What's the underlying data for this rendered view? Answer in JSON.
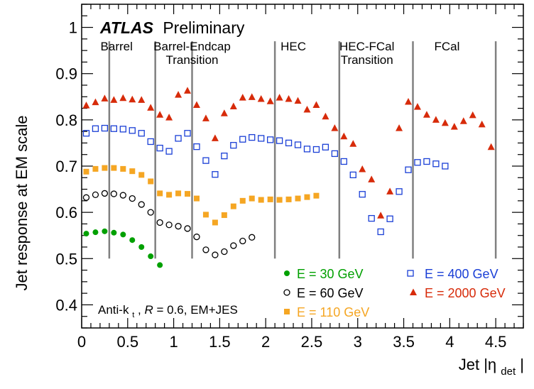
{
  "chart_data": {
    "type": "scatter",
    "title_bold": "ATLAS",
    "title_rest": "Preliminary",
    "xlabel": "Jet |η",
    "xlabel_sub": "det",
    "xlabel_end": "|",
    "ylabel": "Jet response at EM scale",
    "xlim": [
      0,
      4.8
    ],
    "ylim": [
      0.35,
      1.05
    ],
    "grid": false,
    "legend_placement": "bottom-right",
    "xticks": [
      {
        "v": 0,
        "label": "0"
      },
      {
        "v": 0.5,
        "label": "0.5"
      },
      {
        "v": 1,
        "label": "1"
      },
      {
        "v": 1.5,
        "label": "1.5"
      },
      {
        "v": 2,
        "label": "2"
      },
      {
        "v": 2.5,
        "label": "2.5"
      },
      {
        "v": 3,
        "label": "3"
      },
      {
        "v": 3.5,
        "label": "3.5"
      },
      {
        "v": 4,
        "label": "4"
      },
      {
        "v": 4.5,
        "label": "4.5"
      }
    ],
    "yticks": [
      {
        "v": 0.4,
        "label": "0.4"
      },
      {
        "v": 0.5,
        "label": "0.5"
      },
      {
        "v": 0.6,
        "label": "0.6"
      },
      {
        "v": 0.7,
        "label": "0.7"
      },
      {
        "v": 0.8,
        "label": "0.8"
      },
      {
        "v": 0.9,
        "label": "0.9"
      },
      {
        "v": 1.0,
        "label": "1"
      }
    ],
    "region_lines": [
      0.3,
      0.8,
      1.2,
      2.1,
      2.8,
      3.6,
      4.5
    ],
    "region_labels": [
      {
        "x": 0.38,
        "y": 0.95,
        "lines": [
          "Barrel"
        ]
      },
      {
        "x": 1.2,
        "y": 0.95,
        "lines": [
          "Barrel-Endcap",
          "Transition"
        ]
      },
      {
        "x": 2.3,
        "y": 0.95,
        "lines": [
          "HEC"
        ]
      },
      {
        "x": 3.1,
        "y": 0.95,
        "lines": [
          "HEC-FCal",
          "Transition"
        ]
      },
      {
        "x": 3.97,
        "y": 0.95,
        "lines": [
          "FCal"
        ]
      }
    ],
    "annotation": {
      "prefix": "Anti-k",
      "sub": "t",
      "middle": ", ",
      "italic": "R",
      "suffix": " = 0.6, EM+JES"
    },
    "series": [
      {
        "name": "E = 30 GeV",
        "color": "#00a000",
        "marker": "circle-filled",
        "x": [
          0.05,
          0.15,
          0.25,
          0.35,
          0.45,
          0.55,
          0.65,
          0.75,
          0.85
        ],
        "y": [
          0.554,
          0.557,
          0.559,
          0.556,
          0.552,
          0.54,
          0.525,
          0.505,
          0.486
        ]
      },
      {
        "name": "E = 60 GeV",
        "color": "#000000",
        "marker": "circle-open",
        "x": [
          0.05,
          0.15,
          0.25,
          0.35,
          0.45,
          0.55,
          0.65,
          0.75,
          0.85,
          0.95,
          1.05,
          1.15,
          1.25,
          1.35,
          1.45,
          1.55,
          1.65,
          1.75,
          1.85
        ],
        "y": [
          0.632,
          0.638,
          0.641,
          0.64,
          0.637,
          0.63,
          0.617,
          0.6,
          0.578,
          0.573,
          0.57,
          0.565,
          0.547,
          0.519,
          0.508,
          0.515,
          0.528,
          0.538,
          0.546
        ]
      },
      {
        "name": "E = 110 GeV",
        "color": "#f5a623",
        "marker": "square-filled",
        "x": [
          0.05,
          0.15,
          0.25,
          0.35,
          0.45,
          0.55,
          0.65,
          0.75,
          0.85,
          0.95,
          1.05,
          1.15,
          1.25,
          1.35,
          1.45,
          1.55,
          1.65,
          1.75,
          1.85,
          1.95,
          2.05,
          2.15,
          2.25,
          2.35,
          2.45,
          2.55
        ],
        "y": [
          0.688,
          0.694,
          0.696,
          0.696,
          0.694,
          0.689,
          0.681,
          0.667,
          0.641,
          0.638,
          0.641,
          0.64,
          0.63,
          0.595,
          0.578,
          0.594,
          0.613,
          0.625,
          0.63,
          0.627,
          0.628,
          0.627,
          0.628,
          0.63,
          0.633,
          0.636
        ]
      },
      {
        "name": "E = 400 GeV",
        "color": "#1a3fd6",
        "marker": "square-open",
        "x": [
          0.05,
          0.15,
          0.25,
          0.35,
          0.45,
          0.55,
          0.65,
          0.75,
          0.85,
          0.95,
          1.05,
          1.15,
          1.25,
          1.35,
          1.45,
          1.55,
          1.65,
          1.75,
          1.85,
          1.95,
          2.05,
          2.15,
          2.25,
          2.35,
          2.45,
          2.55,
          2.65,
          2.75,
          2.85,
          2.95,
          3.05,
          3.15,
          3.25,
          3.35,
          3.45,
          3.55,
          3.65,
          3.75,
          3.85,
          3.95
        ],
        "y": [
          0.771,
          0.781,
          0.782,
          0.781,
          0.78,
          0.777,
          0.771,
          0.753,
          0.739,
          0.732,
          0.76,
          0.771,
          0.742,
          0.712,
          0.682,
          0.722,
          0.745,
          0.758,
          0.762,
          0.76,
          0.757,
          0.755,
          0.75,
          0.746,
          0.737,
          0.736,
          0.741,
          0.727,
          0.71,
          0.681,
          0.639,
          0.587,
          0.558,
          0.586,
          0.645,
          0.692,
          0.708,
          0.71,
          0.705,
          0.7
        ]
      },
      {
        "name": "E = 2000 GeV",
        "color": "#d72b0a",
        "marker": "triangle-filled",
        "x": [
          0.05,
          0.15,
          0.25,
          0.35,
          0.45,
          0.55,
          0.65,
          0.75,
          0.85,
          0.95,
          1.05,
          1.15,
          1.25,
          1.35,
          1.45,
          1.55,
          1.65,
          1.75,
          1.85,
          1.95,
          2.05,
          2.15,
          2.25,
          2.35,
          2.45,
          2.55,
          2.65,
          2.75,
          2.85,
          2.95,
          3.05,
          3.15,
          3.25,
          3.35,
          3.45,
          3.55,
          3.65,
          3.75,
          3.85,
          3.95,
          4.05,
          4.15,
          4.25,
          4.35,
          4.45
        ],
        "y": [
          0.831,
          0.838,
          0.846,
          0.843,
          0.847,
          0.844,
          0.843,
          0.826,
          0.811,
          0.805,
          0.854,
          0.863,
          0.832,
          0.803,
          0.76,
          0.814,
          0.829,
          0.848,
          0.849,
          0.845,
          0.84,
          0.848,
          0.845,
          0.841,
          0.822,
          0.832,
          0.807,
          0.782,
          0.764,
          0.748,
          0.693,
          0.671,
          0.593,
          0.645,
          0.782,
          0.839,
          0.828,
          0.811,
          0.8,
          0.793,
          0.785,
          0.797,
          0.81,
          0.79,
          0.741
        ]
      }
    ]
  }
}
